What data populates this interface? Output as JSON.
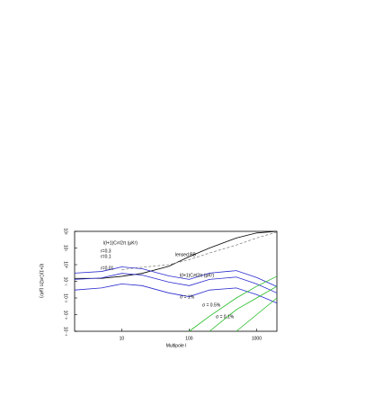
{
  "chart_data": {
    "type": "line",
    "x_label": "Multipole l",
    "y_label": "l(l+1)Cₗᴮ/2π (μK²)",
    "x": [
      2,
      5,
      10,
      20,
      50,
      100,
      200,
      500,
      1000,
      2000
    ],
    "xlim": [
      2,
      2000
    ],
    "xticks": [
      10,
      100,
      1000
    ],
    "ylim": [
      0.0001,
      100
    ],
    "yticks": [
      {
        "value": 0.0001,
        "label": "10⁻⁴"
      },
      {
        "value": 0.001,
        "label": "10⁻³"
      },
      {
        "value": 0.01,
        "label": "10⁻²"
      },
      {
        "value": 0.1,
        "label": "10⁻¹"
      },
      {
        "value": 1,
        "label": "10⁰"
      },
      {
        "value": 10,
        "label": "10¹"
      },
      {
        "value": 100,
        "label": "10²"
      }
    ],
    "log_x": true,
    "log_y": true,
    "series": [
      {
        "name": "l(l+1)Cₗᴱ/2π (μK²)",
        "color": "#000000",
        "dashed": false,
        "values": [
          0.15,
          0.15,
          0.2,
          0.3,
          0.8,
          3,
          10,
          40,
          80,
          100
        ]
      },
      {
        "name": "lensed BB",
        "color": "#888888",
        "dashed": true,
        "values": [
          null,
          null,
          0.5,
          0.7,
          1,
          2,
          5,
          15,
          40,
          90
        ]
      },
      {
        "name": "r=0.3",
        "color": "#2a2ad0",
        "dashed": false,
        "values": [
          0.31,
          0.39,
          0.73,
          0.57,
          0.21,
          0.13,
          0.31,
          0.44,
          0.17,
          0.048
        ]
      },
      {
        "name": "r=0.1",
        "color": "#2a2ad0",
        "dashed": false,
        "values": [
          0.13,
          0.16,
          0.3,
          0.24,
          0.09,
          0.055,
          0.13,
          0.18,
          0.07,
          0.02
        ]
      },
      {
        "name": "r=0.01",
        "color": "#2a2ad0",
        "dashed": false,
        "values": [
          0.03,
          0.04,
          0.07,
          0.055,
          0.02,
          0.012,
          0.03,
          0.04,
          0.016,
          0.005
        ]
      },
      {
        "name": "σ = 1%",
        "color": "#22bb22",
        "dashed": false,
        "values": [
          null,
          null,
          null,
          null,
          null,
          0.0001,
          0.0008,
          0.01,
          0.05,
          0.2
        ]
      },
      {
        "name": "σ = 0.5%",
        "color": "#22bb22",
        "dashed": false,
        "values": [
          null,
          null,
          null,
          null,
          null,
          null,
          0.0001,
          0.002,
          0.01,
          0.05
        ]
      },
      {
        "name": "σ = 0.1%",
        "color": "#22bb22",
        "dashed": false,
        "values": [
          null,
          null,
          null,
          null,
          null,
          null,
          null,
          0.0001,
          0.001,
          0.01
        ]
      }
    ],
    "annotations": [
      "l(l+1)Cₗᴮ/2π (μK²)"
    ]
  }
}
